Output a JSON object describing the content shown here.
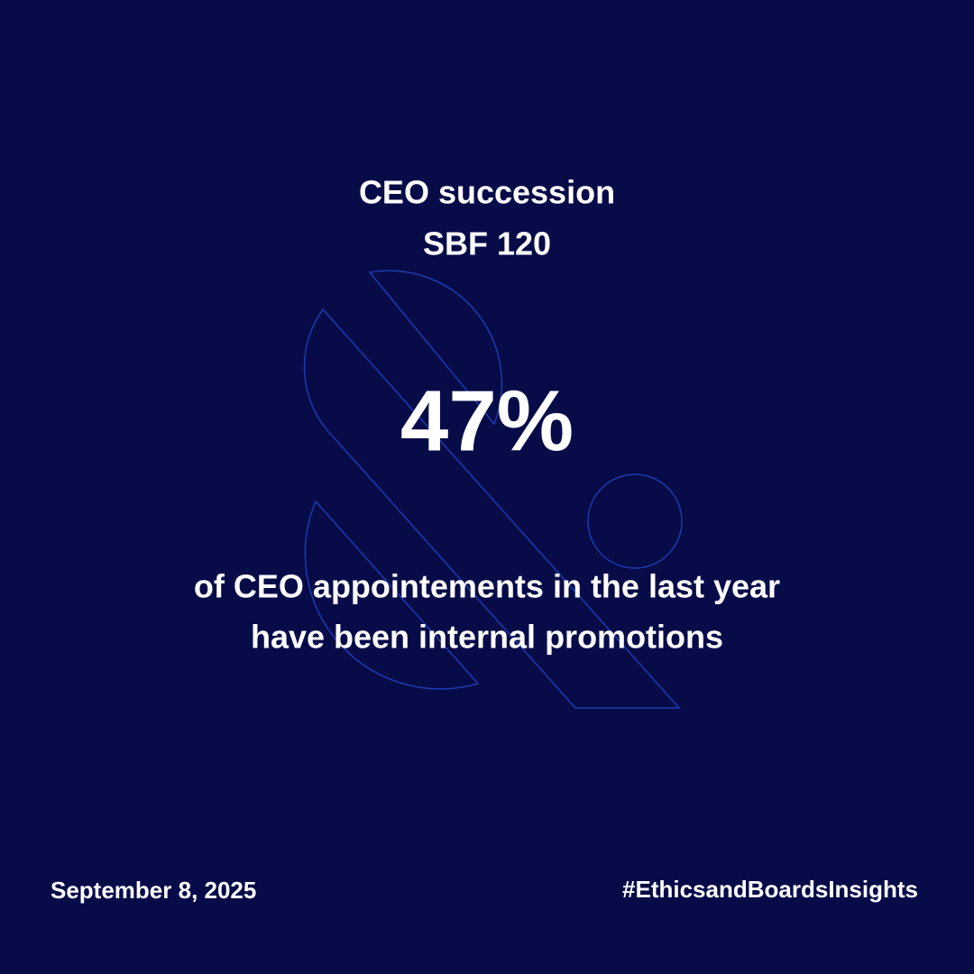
{
  "header": {
    "title_lines": [
      "CEO succession",
      "SBF 120"
    ]
  },
  "stat": {
    "value": "47%",
    "description_lines": [
      "of CEO appointements in the last year",
      "have been internal promotions"
    ]
  },
  "footer": {
    "date": "September 8, 2025",
    "hashtag": "#EthicsandBoardsInsights"
  }
}
